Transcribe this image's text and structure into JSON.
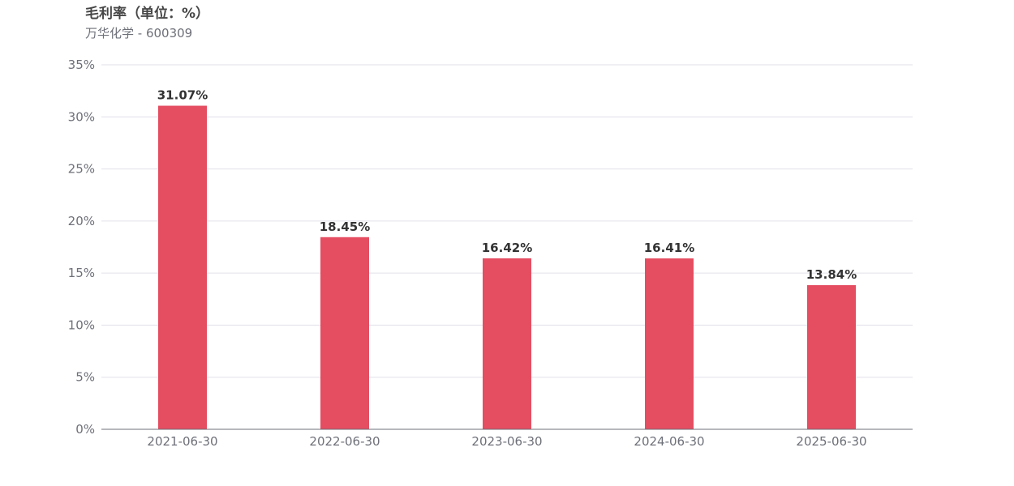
{
  "title": "毛利率（单位：%）",
  "subtitle": "万华化学 - 600309",
  "chart_data": {
    "type": "bar",
    "title": "毛利率（单位：%）",
    "subtitle": "万华化学 - 600309",
    "xlabel": "",
    "ylabel": "",
    "categories": [
      "2021-06-30",
      "2022-06-30",
      "2023-06-30",
      "2024-06-30",
      "2025-06-30"
    ],
    "values": [
      31.07,
      18.45,
      16.42,
      16.41,
      13.84
    ],
    "data_labels": [
      "31.07%",
      "18.45%",
      "16.42%",
      "16.41%",
      "13.84%"
    ],
    "ylim": [
      0,
      35
    ],
    "yticks": [
      0,
      5,
      10,
      15,
      20,
      25,
      30,
      35
    ],
    "ytick_labels": [
      "0%",
      "5%",
      "10%",
      "15%",
      "20%",
      "25%",
      "30%",
      "35%"
    ],
    "grid": true,
    "legend": false,
    "colors": {
      "bar": "#e54d61",
      "grid": "#e0e0ea",
      "axis": "#6e7079"
    }
  }
}
